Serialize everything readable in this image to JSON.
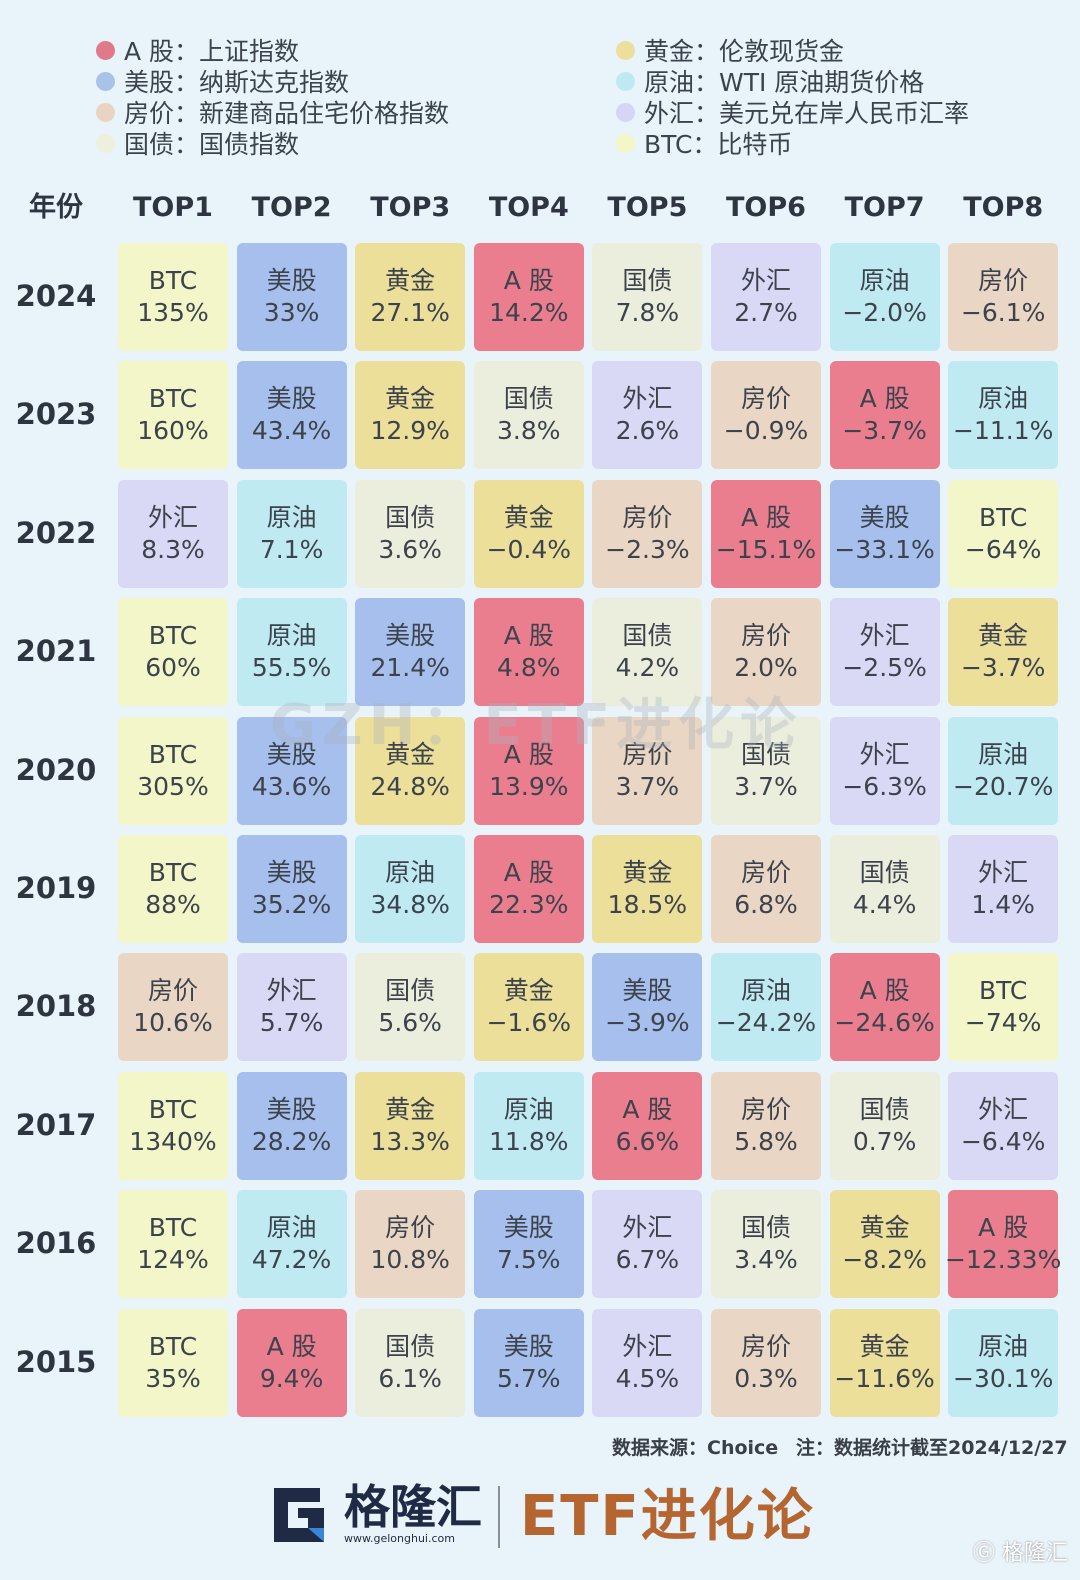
{
  "legend": [
    {
      "key": "A股",
      "label": "A 股：上证指数",
      "color": "#e07a8a"
    },
    {
      "key": "美股",
      "label": "美股：纳斯达克指数",
      "color": "#a9c2ea"
    },
    {
      "key": "房价",
      "label": "房价：新建商品住宅价格指数",
      "color": "#e9d4c1"
    },
    {
      "key": "国债",
      "label": "国债：国债指数",
      "color": "#eef0de"
    },
    {
      "key": "黄金",
      "label": "黄金：伦敦现货金",
      "color": "#ecdf9c"
    },
    {
      "key": "原油",
      "label": "原油：WTI 原油期货价格",
      "color": "#bdeaf0"
    },
    {
      "key": "外汇",
      "label": "外汇：美元兑在岸人民币汇率",
      "color": "#d5d5f5"
    },
    {
      "key": "BTC",
      "label": "BTC：比特币",
      "color": "#f3f6c6"
    }
  ],
  "colors": {
    "A股": "#ea7e8f",
    "美股": "#a6bfec",
    "房价": "#ead6c4",
    "国债": "#ebeedd",
    "黄金": "#ecdf9a",
    "原油": "#bfeaf2",
    "外汇": "#d9d9f6",
    "BTC": "#f2f6c8"
  },
  "chart_data": {
    "type": "table",
    "header_year": "年份",
    "columns": [
      "TOP1",
      "TOP2",
      "TOP3",
      "TOP4",
      "TOP5",
      "TOP6",
      "TOP7",
      "TOP8"
    ],
    "rows": [
      {
        "year": "2024",
        "cells": [
          {
            "asset": "BTC",
            "label": "BTC",
            "value": "135%"
          },
          {
            "asset": "美股",
            "label": "美股",
            "value": "33%"
          },
          {
            "asset": "黄金",
            "label": "黄金",
            "value": "27.1%"
          },
          {
            "asset": "A股",
            "label": "A 股",
            "value": "14.2%"
          },
          {
            "asset": "国债",
            "label": "国债",
            "value": "7.8%"
          },
          {
            "asset": "外汇",
            "label": "外汇",
            "value": "2.7%"
          },
          {
            "asset": "原油",
            "label": "原油",
            "value": "−2.0%"
          },
          {
            "asset": "房价",
            "label": "房价",
            "value": "−6.1%"
          }
        ]
      },
      {
        "year": "2023",
        "cells": [
          {
            "asset": "BTC",
            "label": "BTC",
            "value": "160%"
          },
          {
            "asset": "美股",
            "label": "美股",
            "value": "43.4%"
          },
          {
            "asset": "黄金",
            "label": "黄金",
            "value": "12.9%"
          },
          {
            "asset": "国债",
            "label": "国债",
            "value": "3.8%"
          },
          {
            "asset": "外汇",
            "label": "外汇",
            "value": "2.6%"
          },
          {
            "asset": "房价",
            "label": "房价",
            "value": "−0.9%"
          },
          {
            "asset": "A股",
            "label": "A 股",
            "value": "−3.7%"
          },
          {
            "asset": "原油",
            "label": "原油",
            "value": "−11.1%"
          }
        ]
      },
      {
        "year": "2022",
        "cells": [
          {
            "asset": "外汇",
            "label": "外汇",
            "value": "8.3%"
          },
          {
            "asset": "原油",
            "label": "原油",
            "value": "7.1%"
          },
          {
            "asset": "国债",
            "label": "国债",
            "value": "3.6%"
          },
          {
            "asset": "黄金",
            "label": "黄金",
            "value": "−0.4%"
          },
          {
            "asset": "房价",
            "label": "房价",
            "value": "−2.3%"
          },
          {
            "asset": "A股",
            "label": "A 股",
            "value": "−15.1%"
          },
          {
            "asset": "美股",
            "label": "美股",
            "value": "−33.1%"
          },
          {
            "asset": "BTC",
            "label": "BTC",
            "value": "−64%"
          }
        ]
      },
      {
        "year": "2021",
        "cells": [
          {
            "asset": "BTC",
            "label": "BTC",
            "value": "60%"
          },
          {
            "asset": "原油",
            "label": "原油",
            "value": "55.5%"
          },
          {
            "asset": "美股",
            "label": "美股",
            "value": "21.4%"
          },
          {
            "asset": "A股",
            "label": "A 股",
            "value": "4.8%"
          },
          {
            "asset": "国债",
            "label": "国债",
            "value": "4.2%"
          },
          {
            "asset": "房价",
            "label": "房价",
            "value": "2.0%"
          },
          {
            "asset": "外汇",
            "label": "外汇",
            "value": "−2.5%"
          },
          {
            "asset": "黄金",
            "label": "黄金",
            "value": "−3.7%"
          }
        ]
      },
      {
        "year": "2020",
        "cells": [
          {
            "asset": "BTC",
            "label": "BTC",
            "value": "305%"
          },
          {
            "asset": "美股",
            "label": "美股",
            "value": "43.6%"
          },
          {
            "asset": "黄金",
            "label": "黄金",
            "value": "24.8%"
          },
          {
            "asset": "A股",
            "label": "A 股",
            "value": "13.9%"
          },
          {
            "asset": "房价",
            "label": "房价",
            "value": "3.7%"
          },
          {
            "asset": "国债",
            "label": "国债",
            "value": "3.7%"
          },
          {
            "asset": "外汇",
            "label": "外汇",
            "value": "−6.3%"
          },
          {
            "asset": "原油",
            "label": "原油",
            "value": "−20.7%"
          }
        ]
      },
      {
        "year": "2019",
        "cells": [
          {
            "asset": "BTC",
            "label": "BTC",
            "value": "88%"
          },
          {
            "asset": "美股",
            "label": "美股",
            "value": "35.2%"
          },
          {
            "asset": "原油",
            "label": "原油",
            "value": "34.8%"
          },
          {
            "asset": "A股",
            "label": "A 股",
            "value": "22.3%"
          },
          {
            "asset": "黄金",
            "label": "黄金",
            "value": "18.5%"
          },
          {
            "asset": "房价",
            "label": "房价",
            "value": "6.8%"
          },
          {
            "asset": "国债",
            "label": "国债",
            "value": "4.4%"
          },
          {
            "asset": "外汇",
            "label": "外汇",
            "value": "1.4%"
          }
        ]
      },
      {
        "year": "2018",
        "cells": [
          {
            "asset": "房价",
            "label": "房价",
            "value": "10.6%"
          },
          {
            "asset": "外汇",
            "label": "外汇",
            "value": "5.7%"
          },
          {
            "asset": "国债",
            "label": "国债",
            "value": "5.6%"
          },
          {
            "asset": "黄金",
            "label": "黄金",
            "value": "−1.6%"
          },
          {
            "asset": "美股",
            "label": "美股",
            "value": "−3.9%"
          },
          {
            "asset": "原油",
            "label": "原油",
            "value": "−24.2%"
          },
          {
            "asset": "A股",
            "label": "A 股",
            "value": "−24.6%"
          },
          {
            "asset": "BTC",
            "label": "BTC",
            "value": "−74%"
          }
        ]
      },
      {
        "year": "2017",
        "cells": [
          {
            "asset": "BTC",
            "label": "BTC",
            "value": "1340%"
          },
          {
            "asset": "美股",
            "label": "美股",
            "value": "28.2%"
          },
          {
            "asset": "黄金",
            "label": "黄金",
            "value": "13.3%"
          },
          {
            "asset": "原油",
            "label": "原油",
            "value": "11.8%"
          },
          {
            "asset": "A股",
            "label": "A 股",
            "value": "6.6%"
          },
          {
            "asset": "房价",
            "label": "房价",
            "value": "5.8%"
          },
          {
            "asset": "国债",
            "label": "国债",
            "value": "0.7%"
          },
          {
            "asset": "外汇",
            "label": "外汇",
            "value": "−6.4%"
          }
        ]
      },
      {
        "year": "2016",
        "cells": [
          {
            "asset": "BTC",
            "label": "BTC",
            "value": "124%"
          },
          {
            "asset": "原油",
            "label": "原油",
            "value": "47.2%"
          },
          {
            "asset": "房价",
            "label": "房价",
            "value": "10.8%"
          },
          {
            "asset": "美股",
            "label": "美股",
            "value": "7.5%"
          },
          {
            "asset": "外汇",
            "label": "外汇",
            "value": "6.7%"
          },
          {
            "asset": "国债",
            "label": "国债",
            "value": "3.4%"
          },
          {
            "asset": "黄金",
            "label": "黄金",
            "value": "−8.2%"
          },
          {
            "asset": "A股",
            "label": "A 股",
            "value": "−12.33%"
          }
        ]
      },
      {
        "year": "2015",
        "cells": [
          {
            "asset": "BTC",
            "label": "BTC",
            "value": "35%"
          },
          {
            "asset": "A股",
            "label": "A 股",
            "value": "9.4%"
          },
          {
            "asset": "国债",
            "label": "国债",
            "value": "6.1%"
          },
          {
            "asset": "美股",
            "label": "美股",
            "value": "5.7%"
          },
          {
            "asset": "外汇",
            "label": "外汇",
            "value": "4.5%"
          },
          {
            "asset": "房价",
            "label": "房价",
            "value": "0.3%"
          },
          {
            "asset": "黄金",
            "label": "黄金",
            "value": "−11.6%"
          },
          {
            "asset": "原油",
            "label": "原油",
            "value": "−30.1%"
          }
        ]
      }
    ]
  },
  "watermark": "GZH：ETF进化论",
  "footer": {
    "source": "数据来源：Choice",
    "note": "注：数据统计截至2024/12/27"
  },
  "brand": {
    "name": "格隆汇",
    "url": "www.gelonghui.com",
    "etf": "ETF进化论",
    "corner": "格隆汇"
  }
}
